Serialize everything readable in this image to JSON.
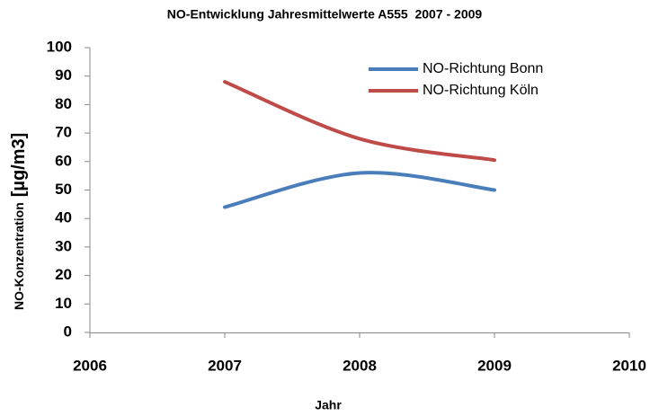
{
  "chart_data": {
    "type": "line",
    "title": "NO-Entwicklung Jahresmittelwerte A555  2007 - 2009",
    "x_label": "Jahr",
    "y_label": "NO-Konzentration",
    "y_label_unit": "[µg/m3]",
    "x": [
      2007,
      2008,
      2009
    ],
    "series": [
      {
        "name": "NO-Richtung Bonn",
        "color": "#4a7ebb",
        "values": [
          44,
          56,
          50
        ]
      },
      {
        "name": "NO-Richtung Köln",
        "color": "#be4b48",
        "values": [
          88,
          68,
          60.5
        ]
      }
    ],
    "xlim": [
      2006,
      2010
    ],
    "xticks": [
      2006,
      2007,
      2008,
      2009,
      2010
    ],
    "ylim": [
      0,
      100
    ],
    "yticks": [
      0,
      10,
      20,
      30,
      40,
      50,
      60,
      70,
      80,
      90,
      100
    ],
    "smooth": true,
    "legend": "top-right"
  }
}
